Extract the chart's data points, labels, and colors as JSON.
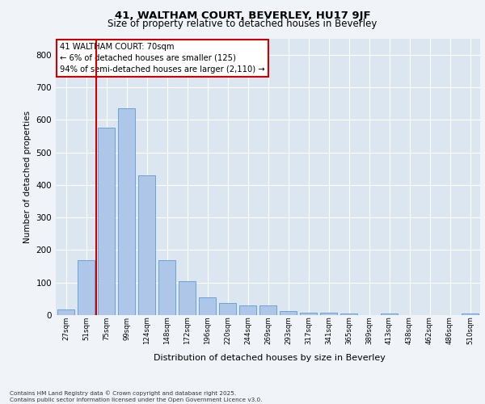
{
  "title1": "41, WALTHAM COURT, BEVERLEY, HU17 9JF",
  "title2": "Size of property relative to detached houses in Beverley",
  "xlabel": "Distribution of detached houses by size in Beverley",
  "ylabel": "Number of detached properties",
  "bar_labels": [
    "27sqm",
    "51sqm",
    "75sqm",
    "99sqm",
    "124sqm",
    "148sqm",
    "172sqm",
    "196sqm",
    "220sqm",
    "244sqm",
    "269sqm",
    "293sqm",
    "317sqm",
    "341sqm",
    "365sqm",
    "389sqm",
    "413sqm",
    "438sqm",
    "462sqm",
    "486sqm",
    "510sqm"
  ],
  "bar_values": [
    18,
    170,
    575,
    635,
    430,
    170,
    103,
    55,
    38,
    30,
    30,
    13,
    8,
    8,
    4,
    0,
    4,
    0,
    0,
    0,
    5
  ],
  "bar_color": "#aec6e8",
  "bar_edge_color": "#5b9bd5",
  "vline_x": 1.5,
  "vline_color": "#cc0000",
  "annotation_text": "41 WALTHAM COURT: 70sqm\n← 6% of detached houses are smaller (125)\n94% of semi-detached houses are larger (2,110) →",
  "annotation_box_color": "#ffffff",
  "annotation_box_edge": "#cc0000",
  "ylim": [
    0,
    850
  ],
  "yticks": [
    0,
    100,
    200,
    300,
    400,
    500,
    600,
    700,
    800
  ],
  "background_color": "#dce6f0",
  "grid_color": "#ffffff",
  "fig_background": "#f0f4f8",
  "footer_line1": "Contains HM Land Registry data © Crown copyright and database right 2025.",
  "footer_line2": "Contains public sector information licensed under the Open Government Licence v3.0."
}
